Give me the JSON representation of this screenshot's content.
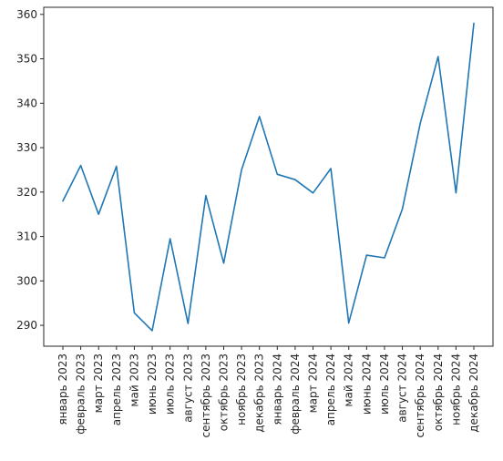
{
  "chart_data": {
    "type": "line",
    "title": "",
    "xlabel": "",
    "ylabel": "",
    "categories": [
      "январь 2023",
      "февраль 2023",
      "март 2023",
      "апрель 2023",
      "май 2023",
      "июнь 2023",
      "июль 2023",
      "август 2023",
      "сентябрь 2023",
      "октябрь 2023",
      "ноябрь 2023",
      "декабрь 2023",
      "январь 2024",
      "февраль 2024",
      "март 2024",
      "апрель 2024",
      "май 2024",
      "июнь 2024",
      "июль 2024",
      "август 2024",
      "сентябрь 2024",
      "октябрь 2024",
      "ноябрь 2024",
      "декабрь 2024"
    ],
    "series": [
      {
        "color": "#1f77b4",
        "values": [
          318.0,
          326.0,
          315.0,
          325.8,
          292.8,
          288.8,
          309.5,
          290.4,
          319.2,
          304.0,
          325.0,
          337.0,
          324.0,
          322.8,
          319.8,
          325.3,
          290.5,
          305.8,
          305.2,
          316.2,
          335.5,
          350.5,
          319.8,
          358.0
        ]
      }
    ],
    "yticks": [
      290,
      300,
      310,
      320,
      330,
      340,
      350,
      360
    ],
    "ylim": [
      285.3,
      361.6
    ],
    "grid": false,
    "legend": "none"
  }
}
